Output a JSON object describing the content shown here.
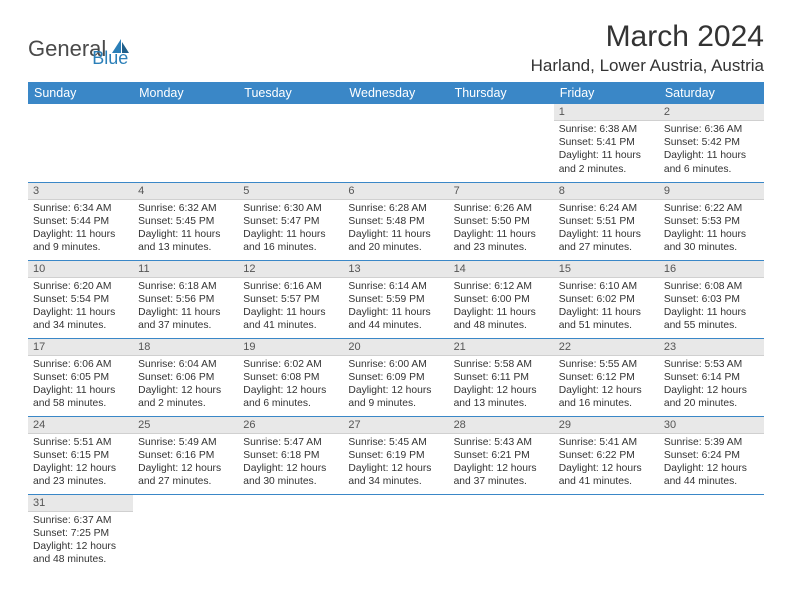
{
  "logo": {
    "part1": "General",
    "part2": "Blue"
  },
  "title": "March 2024",
  "location": "Harland, Lower Austria, Austria",
  "colors": {
    "header_bg": "#3a87c7",
    "header_text": "#ffffff",
    "daybar_bg": "#e8e8e8",
    "divider": "#3a87c7",
    "text": "#333333",
    "logo_gray": "#4a4a4a",
    "logo_blue": "#2b7fb8"
  },
  "weekdays": [
    "Sunday",
    "Monday",
    "Tuesday",
    "Wednesday",
    "Thursday",
    "Friday",
    "Saturday"
  ],
  "weeks": [
    [
      null,
      null,
      null,
      null,
      null,
      {
        "d": "1",
        "rise": "6:38 AM",
        "set": "5:41 PM",
        "day": "11 hours and 2 minutes."
      },
      {
        "d": "2",
        "rise": "6:36 AM",
        "set": "5:42 PM",
        "day": "11 hours and 6 minutes."
      }
    ],
    [
      {
        "d": "3",
        "rise": "6:34 AM",
        "set": "5:44 PM",
        "day": "11 hours and 9 minutes."
      },
      {
        "d": "4",
        "rise": "6:32 AM",
        "set": "5:45 PM",
        "day": "11 hours and 13 minutes."
      },
      {
        "d": "5",
        "rise": "6:30 AM",
        "set": "5:47 PM",
        "day": "11 hours and 16 minutes."
      },
      {
        "d": "6",
        "rise": "6:28 AM",
        "set": "5:48 PM",
        "day": "11 hours and 20 minutes."
      },
      {
        "d": "7",
        "rise": "6:26 AM",
        "set": "5:50 PM",
        "day": "11 hours and 23 minutes."
      },
      {
        "d": "8",
        "rise": "6:24 AM",
        "set": "5:51 PM",
        "day": "11 hours and 27 minutes."
      },
      {
        "d": "9",
        "rise": "6:22 AM",
        "set": "5:53 PM",
        "day": "11 hours and 30 minutes."
      }
    ],
    [
      {
        "d": "10",
        "rise": "6:20 AM",
        "set": "5:54 PM",
        "day": "11 hours and 34 minutes."
      },
      {
        "d": "11",
        "rise": "6:18 AM",
        "set": "5:56 PM",
        "day": "11 hours and 37 minutes."
      },
      {
        "d": "12",
        "rise": "6:16 AM",
        "set": "5:57 PM",
        "day": "11 hours and 41 minutes."
      },
      {
        "d": "13",
        "rise": "6:14 AM",
        "set": "5:59 PM",
        "day": "11 hours and 44 minutes."
      },
      {
        "d": "14",
        "rise": "6:12 AM",
        "set": "6:00 PM",
        "day": "11 hours and 48 minutes."
      },
      {
        "d": "15",
        "rise": "6:10 AM",
        "set": "6:02 PM",
        "day": "11 hours and 51 minutes."
      },
      {
        "d": "16",
        "rise": "6:08 AM",
        "set": "6:03 PM",
        "day": "11 hours and 55 minutes."
      }
    ],
    [
      {
        "d": "17",
        "rise": "6:06 AM",
        "set": "6:05 PM",
        "day": "11 hours and 58 minutes."
      },
      {
        "d": "18",
        "rise": "6:04 AM",
        "set": "6:06 PM",
        "day": "12 hours and 2 minutes."
      },
      {
        "d": "19",
        "rise": "6:02 AM",
        "set": "6:08 PM",
        "day": "12 hours and 6 minutes."
      },
      {
        "d": "20",
        "rise": "6:00 AM",
        "set": "6:09 PM",
        "day": "12 hours and 9 minutes."
      },
      {
        "d": "21",
        "rise": "5:58 AM",
        "set": "6:11 PM",
        "day": "12 hours and 13 minutes."
      },
      {
        "d": "22",
        "rise": "5:55 AM",
        "set": "6:12 PM",
        "day": "12 hours and 16 minutes."
      },
      {
        "d": "23",
        "rise": "5:53 AM",
        "set": "6:14 PM",
        "day": "12 hours and 20 minutes."
      }
    ],
    [
      {
        "d": "24",
        "rise": "5:51 AM",
        "set": "6:15 PM",
        "day": "12 hours and 23 minutes."
      },
      {
        "d": "25",
        "rise": "5:49 AM",
        "set": "6:16 PM",
        "day": "12 hours and 27 minutes."
      },
      {
        "d": "26",
        "rise": "5:47 AM",
        "set": "6:18 PM",
        "day": "12 hours and 30 minutes."
      },
      {
        "d": "27",
        "rise": "5:45 AM",
        "set": "6:19 PM",
        "day": "12 hours and 34 minutes."
      },
      {
        "d": "28",
        "rise": "5:43 AM",
        "set": "6:21 PM",
        "day": "12 hours and 37 minutes."
      },
      {
        "d": "29",
        "rise": "5:41 AM",
        "set": "6:22 PM",
        "day": "12 hours and 41 minutes."
      },
      {
        "d": "30",
        "rise": "5:39 AM",
        "set": "6:24 PM",
        "day": "12 hours and 44 minutes."
      }
    ],
    [
      {
        "d": "31",
        "rise": "6:37 AM",
        "set": "7:25 PM",
        "day": "12 hours and 48 minutes."
      },
      null,
      null,
      null,
      null,
      null,
      null
    ]
  ],
  "labels": {
    "sunrise": "Sunrise:",
    "sunset": "Sunset:",
    "daylight": "Daylight:"
  }
}
